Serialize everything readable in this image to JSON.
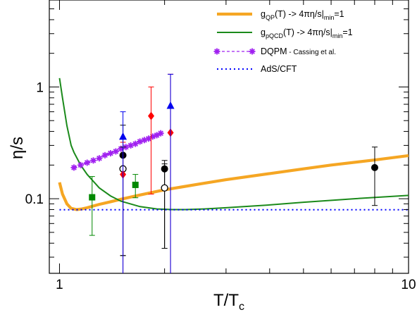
{
  "chart_data": {
    "type": "scatter",
    "title": "",
    "xlabel": {
      "main": "T/T",
      "sub": "c"
    },
    "ylabel": "η/s",
    "x_scale": "log",
    "y_scale": "log",
    "xlim": [
      0.935,
      10
    ],
    "ylim": [
      0.0215,
      6.0
    ],
    "x_ticks": [
      {
        "v": 1,
        "label": "1"
      },
      {
        "v": 10,
        "label": "10"
      }
    ],
    "y_ticks": [
      {
        "v": 0.1,
        "label": "0.1"
      },
      {
        "v": 1,
        "label": "1"
      }
    ],
    "grid": false,
    "legend_placement": "top-right",
    "legend": [
      {
        "key": "qp",
        "prefix": "g",
        "sub": "QP",
        "mid": "(T) -> 4πη/s|",
        "sub2": "min",
        "suffix": "=1",
        "small": ""
      },
      {
        "key": "pqcd",
        "prefix": "g",
        "sub": "pQCD",
        "mid": "(T) -> 4πη/s|",
        "sub2": "min",
        "suffix": "=1",
        "small": ""
      },
      {
        "key": "dqpm",
        "prefix": "DQPM",
        "sub": "",
        "mid": "",
        "sub2": "",
        "suffix": "",
        "small": " - Cassing et al."
      },
      {
        "key": "ads",
        "prefix": "AdS/CFT",
        "sub": "",
        "mid": "",
        "sub2": "",
        "suffix": "",
        "small": ""
      }
    ],
    "colors": {
      "qp": "#f5a623",
      "pqcd": "#1b8a1b",
      "dqpm": "#a020f0",
      "ads": "#0000ff",
      "black": "#000000",
      "red": "#ff0000",
      "blue": "#0000ee",
      "green": "#008800"
    },
    "lines": [
      {
        "key": "qp",
        "x": [
          1.0,
          1.02,
          1.05,
          1.08,
          1.12,
          1.16,
          1.2,
          1.3,
          1.4,
          1.5,
          1.7,
          2.0,
          2.5,
          3.0,
          4.0,
          5.0,
          6.0,
          8.0,
          10.0
        ],
        "y": [
          0.14,
          0.11,
          0.09,
          0.082,
          0.08,
          0.081,
          0.083,
          0.089,
          0.094,
          0.099,
          0.108,
          0.12,
          0.135,
          0.148,
          0.168,
          0.185,
          0.2,
          0.222,
          0.243
        ]
      },
      {
        "key": "pqcd",
        "x": [
          1.0,
          1.02,
          1.05,
          1.08,
          1.1,
          1.15,
          1.2,
          1.3,
          1.4,
          1.5,
          1.7,
          1.9,
          2.1,
          2.3,
          2.6,
          3.0,
          4.0,
          5.0,
          7.0,
          10.0
        ],
        "y": [
          1.2,
          0.8,
          0.45,
          0.3,
          0.26,
          0.2,
          0.165,
          0.125,
          0.106,
          0.095,
          0.085,
          0.081,
          0.08,
          0.08,
          0.081,
          0.083,
          0.088,
          0.093,
          0.1,
          0.107
        ]
      },
      {
        "key": "dqpm",
        "x": [
          1.1,
          1.15,
          1.2,
          1.25,
          1.3,
          1.35,
          1.4,
          1.45,
          1.5,
          1.55,
          1.6,
          1.65,
          1.7,
          1.75,
          1.8,
          1.85,
          1.9,
          1.95
        ],
        "y": [
          0.19,
          0.2,
          0.21,
          0.22,
          0.23,
          0.245,
          0.255,
          0.265,
          0.28,
          0.29,
          0.3,
          0.31,
          0.325,
          0.335,
          0.345,
          0.36,
          0.37,
          0.385
        ]
      },
      {
        "key": "ads",
        "x": [
          1.0,
          10.0
        ],
        "y": [
          0.0796,
          0.0796
        ]
      }
    ],
    "points": [
      {
        "x": 1.24,
        "y": 0.103,
        "err_lo": 0.047,
        "err_hi": 0.158,
        "marker": "square",
        "color": "green"
      },
      {
        "x": 1.65,
        "y": 0.133,
        "err_lo": 0.102,
        "err_hi": 0.165,
        "marker": "square",
        "color": "green"
      },
      {
        "x": 1.52,
        "y": 0.245,
        "err_lo": 0.031,
        "err_hi": 0.455,
        "marker": "circle",
        "color": "black"
      },
      {
        "x": 1.52,
        "y": 0.185,
        "err_lo": 0.031,
        "err_hi": 0.29,
        "marker": "open-circle",
        "color": "black"
      },
      {
        "x": 1.52,
        "y": 0.165,
        "err_lo": 0.0215,
        "err_hi": 0.32,
        "marker": "diamond",
        "color": "red"
      },
      {
        "x": 1.52,
        "y": 0.36,
        "err_lo": 0.0215,
        "err_hi": 0.6,
        "marker": "triangle",
        "color": "blue"
      },
      {
        "x": 1.83,
        "y": 0.55,
        "err_lo": 0.11,
        "err_hi": 1.0,
        "marker": "diamond",
        "color": "red"
      },
      {
        "x": 2.0,
        "y": 0.185,
        "err_lo": 0.036,
        "err_hi": 0.22,
        "marker": "circle",
        "color": "black"
      },
      {
        "x": 2.0,
        "y": 0.125,
        "err_lo": 0.036,
        "err_hi": 0.205,
        "marker": "open-circle",
        "color": "black"
      },
      {
        "x": 2.08,
        "y": 0.39,
        "err_lo": 0.0215,
        "err_hi": 1.3,
        "marker": "diamond",
        "color": "red"
      },
      {
        "x": 2.08,
        "y": 0.68,
        "err_lo": 0.0215,
        "err_hi": 1.3,
        "marker": "triangle",
        "color": "blue"
      },
      {
        "x": 8.0,
        "y": 0.19,
        "err_lo": 0.087,
        "err_hi": 0.29,
        "marker": "circle",
        "color": "black"
      }
    ]
  }
}
